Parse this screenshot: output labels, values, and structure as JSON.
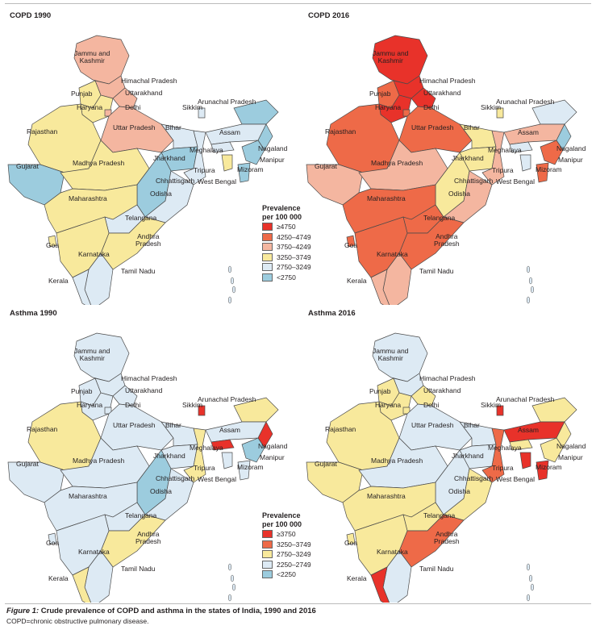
{
  "panels": [
    {
      "title": "COPD 1990"
    },
    {
      "title": "COPD 2016"
    },
    {
      "title": "Asthma 1990"
    },
    {
      "title": "Asthma 2016"
    }
  ],
  "legends": [
    {
      "title_line1": "Prevalence",
      "title_line2": "per 100 000",
      "items": [
        {
          "label": "≥4750",
          "color": "#e8322a"
        },
        {
          "label": "4250–4749",
          "color": "#ee6a48"
        },
        {
          "label": "3750–4249",
          "color": "#f4b6a0"
        },
        {
          "label": "3250–3749",
          "color": "#f8e99c"
        },
        {
          "label": "2750–3249",
          "color": "#ddeaf4"
        },
        {
          "label": "<2750",
          "color": "#9cccde"
        }
      ]
    },
    {
      "title_line1": "Prevalence",
      "title_line2": "per 100 000",
      "items": [
        {
          "label": "≥3750",
          "color": "#e8322a"
        },
        {
          "label": "3250–3749",
          "color": "#ee6a48"
        },
        {
          "label": "2750–3249",
          "color": "#f8e99c"
        },
        {
          "label": "2250–2749",
          "color": "#ddeaf4"
        },
        {
          "label": "<2250",
          "color": "#9cccde"
        }
      ]
    }
  ],
  "state_labels": {
    "jk": "Jammu and\nKashmir",
    "hp": "Himachal Pradesh",
    "pb": "Punjab",
    "uk": "Uttarakhand",
    "hr": "Haryana",
    "dl": "Delhi",
    "ar": "Arunachal Pradesh",
    "sk": "Sikkim",
    "rj": "Rajasthan",
    "up": "Uttar Pradesh",
    "br": "Bihar",
    "as": "Assam",
    "nl": "Nagaland",
    "ml": "Meghalaya",
    "mn": "Manipur",
    "jh": "Jharkhand",
    "gj": "Gujarat",
    "mp": "Madhya Pradesh",
    "tr": "Tripura",
    "mz": "Mizoram",
    "ct": "Chhattisgarh",
    "wb": "West Bengal",
    "or": "Odisha",
    "mh": "Maharashtra",
    "tg": "Telangana",
    "ap": "Andhra\nPradesh",
    "ga": "Goa",
    "ka": "Karnataka",
    "tn": "Tamil Nadu",
    "kl": "Kerala"
  },
  "map_colors": {
    "copd1990": {
      "jk": "#f4b6a0",
      "hp": "#f4b6a0",
      "pb": "#f8e99c",
      "uk": "#f4b6a0",
      "hr": "#f8e99c",
      "dl": "#f4b6a0",
      "rj": "#f8e99c",
      "up": "#f4b6a0",
      "br": "#ddeaf4",
      "jh": "#9cccde",
      "gj": "#9cccde",
      "mp": "#f8e99c",
      "ct": "#9cccde",
      "wb": "#ddeaf4",
      "or": "#ddeaf4",
      "mh": "#f8e99c",
      "tg": "#ddeaf4",
      "ap": "#f8e99c",
      "ka": "#f8e99c",
      "tn": "#ddeaf4",
      "kl": "#ddeaf4",
      "ga": "#f8e99c",
      "ne_ar": "#9cccde",
      "ne_as": "#ddeaf4",
      "ne_nl": "#9cccde",
      "ne_mn": "#9cccde",
      "ne_mz": "#9cccde",
      "ne_tr": "#f8e99c",
      "ne_ml": "#ddeaf4",
      "sk": "#ddeaf4"
    },
    "copd2016": {
      "jk": "#e8322a",
      "hp": "#e8322a",
      "pb": "#ee6a48",
      "uk": "#e8322a",
      "hr": "#e8322a",
      "dl": "#ee6a48",
      "rj": "#ee6a48",
      "up": "#ee6a48",
      "br": "#f8e99c",
      "jh": "#f8e99c",
      "gj": "#f4b6a0",
      "mp": "#f4b6a0",
      "ct": "#f8e99c",
      "wb": "#f4b6a0",
      "or": "#f4b6a0",
      "mh": "#ee6a48",
      "tg": "#ee6a48",
      "ap": "#ee6a48",
      "ka": "#ee6a48",
      "tn": "#f4b6a0",
      "kl": "#f4b6a0",
      "ga": "#ee6a48",
      "ne_ar": "#ddeaf4",
      "ne_as": "#f4b6a0",
      "ne_nl": "#9cccde",
      "ne_mn": "#ee6a48",
      "ne_mz": "#ee6a48",
      "ne_tr": "#ddeaf4",
      "ne_ml": "#ddeaf4",
      "sk": "#f8e99c"
    },
    "asthma1990": {
      "jk": "#ddeaf4",
      "hp": "#ddeaf4",
      "pb": "#ddeaf4",
      "uk": "#ddeaf4",
      "hr": "#ddeaf4",
      "dl": "#ddeaf4",
      "rj": "#f8e99c",
      "up": "#ddeaf4",
      "br": "#ddeaf4",
      "jh": "#ddeaf4",
      "gj": "#ddeaf4",
      "mp": "#ddeaf4",
      "ct": "#9cccde",
      "wb": "#f8e99c",
      "or": "#ddeaf4",
      "mh": "#ddeaf4",
      "tg": "#ddeaf4",
      "ap": "#f8e99c",
      "ka": "#ddeaf4",
      "tn": "#ddeaf4",
      "kl": "#f8e99c",
      "ga": "#ddeaf4",
      "ne_ar": "#f8e99c",
      "ne_as": "#ddeaf4",
      "ne_nl": "#e8322a",
      "ne_mn": "#9cccde",
      "ne_mz": "#ddeaf4",
      "ne_tr": "#ddeaf4",
      "ne_ml": "#e8322a",
      "sk": "#e8322a"
    },
    "asthma2016": {
      "jk": "#ddeaf4",
      "hp": "#ddeaf4",
      "pb": "#f8e99c",
      "uk": "#f8e99c",
      "hr": "#f8e99c",
      "dl": "#f8e99c",
      "rj": "#f8e99c",
      "up": "#ddeaf4",
      "br": "#ddeaf4",
      "jh": "#ddeaf4",
      "gj": "#f8e99c",
      "mp": "#ddeaf4",
      "ct": "#ddeaf4",
      "wb": "#ee6a48",
      "or": "#f8e99c",
      "mh": "#f8e99c",
      "tg": "#f8e99c",
      "ap": "#ee6a48",
      "ka": "#f8e99c",
      "tn": "#ddeaf4",
      "kl": "#e8322a",
      "ga": "#f8e99c",
      "ne_ar": "#f8e99c",
      "ne_as": "#e8322a",
      "ne_nl": "#f8e99c",
      "ne_mn": "#f8e99c",
      "ne_mz": "#e8322a",
      "ne_tr": "#e8322a",
      "ne_ml": "#f8e99c",
      "sk": "#e8322a"
    }
  },
  "caption": {
    "figure": "Figure 1:",
    "title": " Crude prevalence of COPD and asthma in the states of India, 1990 and 2016",
    "note": "COPD=chronic obstructive pulmonary disease."
  }
}
